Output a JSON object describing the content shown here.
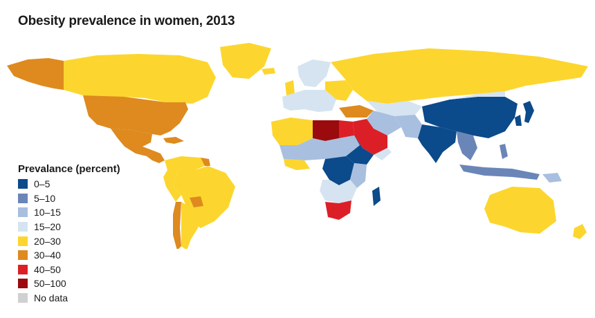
{
  "title": "Obesity prevalence in women, 2013",
  "legend": {
    "title": "Prevalance (percent)",
    "items": [
      {
        "label": "0–5",
        "color": "#0b4a8b"
      },
      {
        "label": "5–10",
        "color": "#6a86b8"
      },
      {
        "label": "10–15",
        "color": "#a8bfdf"
      },
      {
        "label": "15–20",
        "color": "#d6e4f1"
      },
      {
        "label": "20–30",
        "color": "#fcd62e"
      },
      {
        "label": "30–40",
        "color": "#de8a1f"
      },
      {
        "label": "40–50",
        "color": "#dc1f26"
      },
      {
        "label": "50–100",
        "color": "#9b0a0d"
      },
      {
        "label": "No data",
        "color": "#d0d0d0"
      }
    ]
  }
}
